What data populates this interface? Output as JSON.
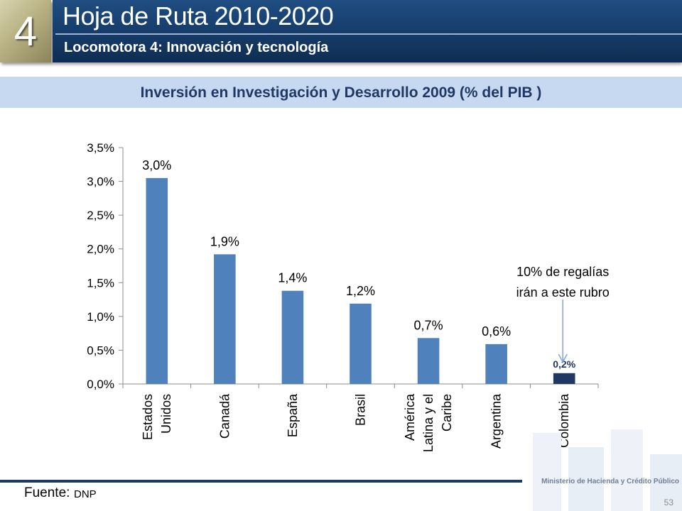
{
  "header": {
    "number": "4",
    "title": "Hoja de Ruta 2010-2020",
    "subtitle": "Locomotora 4: Innovación y tecnología"
  },
  "section_title": "Inversión en Investigación y Desarrollo 2009 (% del PIB )",
  "chart_data": {
    "type": "bar",
    "title": "Inversión en Investigación y Desarrollo 2009 (% del PIB )",
    "categories": [
      [
        "Estados",
        "Unidos"
      ],
      [
        "Canadá"
      ],
      [
        "España"
      ],
      [
        "Brasil"
      ],
      [
        "América",
        "Latina y el",
        "Caribe"
      ],
      [
        "Argentina"
      ],
      [
        "Colombia"
      ]
    ],
    "values": [
      3.05,
      1.92,
      1.38,
      1.19,
      0.68,
      0.59,
      0.16
    ],
    "data_labels": [
      "3,0%",
      "1,9%",
      "1,4%",
      "1,2%",
      "0,7%",
      "0,6%",
      "0,2%"
    ],
    "ylim": [
      0,
      3.5
    ],
    "y_ticks": [
      0,
      0.5,
      1.0,
      1.5,
      2.0,
      2.5,
      3.0,
      3.5
    ],
    "y_tick_labels": [
      "0,0%",
      "0,5%",
      "1,0%",
      "1,5%",
      "2,0%",
      "2,5%",
      "3,0%",
      "3,5%"
    ],
    "grid": false,
    "colors": {
      "bar": "#4f81bd",
      "highlight_bar": "#1f3864"
    },
    "highlight_index": 6,
    "annotation": {
      "lines": [
        "10% de regalías",
        "irán a este rubro"
      ],
      "arrow_color": "#7fa6d6"
    }
  },
  "footer": {
    "source_label": "Fuente:",
    "source_value": "DNP",
    "ministry": "Ministerio de Hacienda y Crédito Público",
    "page": "53"
  }
}
